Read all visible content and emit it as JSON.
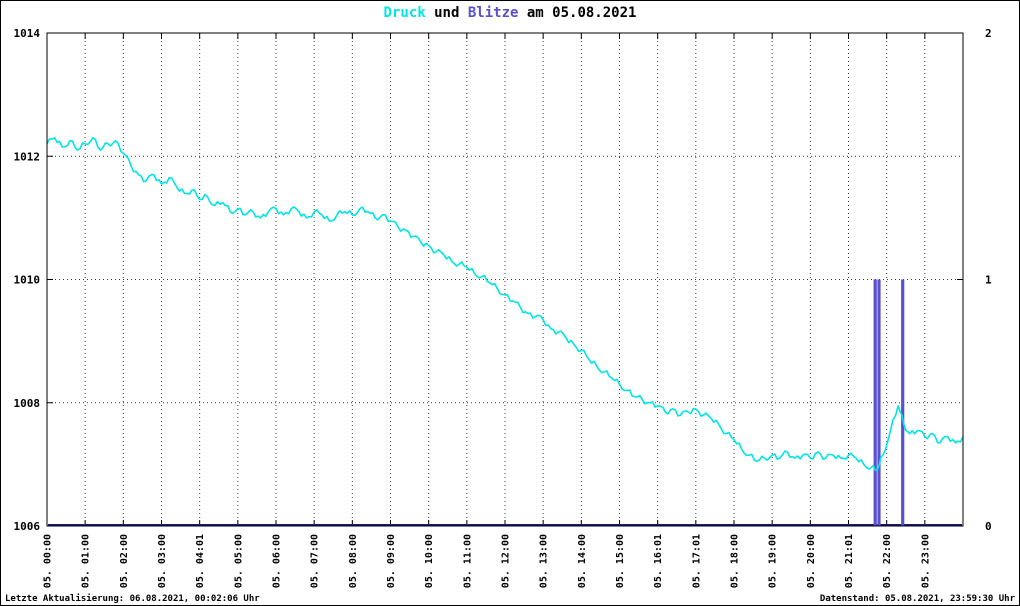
{
  "title": {
    "druck": "Druck",
    "mid": " und ",
    "blitze": "Blitze",
    "rest": " am 05.08.2021"
  },
  "footer": {
    "left": "Letzte Aktualisierung: 06.08.2021, 00:02:06 Uhr",
    "right": "Datenstand: 05.08.2021, 23:59:30 Uhr"
  },
  "colors": {
    "druck_line": "#00e5e5",
    "blitze_bar": "#5a4fcf",
    "blitze_baseline": "#191980",
    "grid": "#3c3c3c",
    "border": "#000000"
  },
  "chart_data": {
    "type": "line",
    "title": "Druck und Blitze am 05.08.2021",
    "x": {
      "min": 0,
      "max": 24,
      "tick_labels": [
        "05. 00:00",
        "05. 01:00",
        "05. 02:00",
        "05. 03:00",
        "05. 04:01",
        "05. 05:00",
        "05. 06:00",
        "05. 07:00",
        "05. 08:00",
        "05. 09:00",
        "05. 10:00",
        "05. 11:00",
        "05. 12:00",
        "05. 13:00",
        "05. 14:00",
        "05. 15:00",
        "05. 16:01",
        "05. 17:01",
        "05. 18:00",
        "05. 19:00",
        "05. 20:00",
        "05. 21:01",
        "05. 22:00",
        "05. 23:00"
      ]
    },
    "y_left": {
      "min": 1006,
      "max": 1014,
      "ticks": [
        1006,
        1008,
        1010,
        1012,
        1014
      ]
    },
    "y_right": {
      "min": 0,
      "max": 2,
      "ticks": [
        0,
        1,
        2
      ]
    },
    "grid": true,
    "legend_position": "none",
    "series": [
      {
        "name": "Druck",
        "type": "line",
        "axis": "left",
        "color": "#00e5e5",
        "points": [
          [
            0,
            1012.2
          ],
          [
            0.2,
            1012.3
          ],
          [
            0.4,
            1012.15
          ],
          [
            0.6,
            1012.25
          ],
          [
            0.8,
            1012.1
          ],
          [
            1,
            1012.2
          ],
          [
            1.2,
            1012.3
          ],
          [
            1.4,
            1012.1
          ],
          [
            1.6,
            1012.2
          ],
          [
            1.8,
            1012.25
          ],
          [
            2,
            1012.05
          ],
          [
            2.2,
            1011.85
          ],
          [
            2.4,
            1011.7
          ],
          [
            2.6,
            1011.6
          ],
          [
            2.8,
            1011.7
          ],
          [
            3,
            1011.55
          ],
          [
            3.2,
            1011.65
          ],
          [
            3.4,
            1011.5
          ],
          [
            3.6,
            1011.4
          ],
          [
            3.8,
            1011.45
          ],
          [
            4,
            1011.3
          ],
          [
            4.2,
            1011.35
          ],
          [
            4.4,
            1011.2
          ],
          [
            4.6,
            1011.25
          ],
          [
            4.8,
            1011.1
          ],
          [
            5,
            1011.15
          ],
          [
            5.2,
            1011.05
          ],
          [
            5.4,
            1011.1
          ],
          [
            5.6,
            1011
          ],
          [
            5.8,
            1011.1
          ],
          [
            6,
            1011.15
          ],
          [
            6.2,
            1011.05
          ],
          [
            6.4,
            1011.15
          ],
          [
            6.6,
            1011.1
          ],
          [
            6.8,
            1011
          ],
          [
            7,
            1011.1
          ],
          [
            7.2,
            1011.05
          ],
          [
            7.4,
            1010.95
          ],
          [
            7.6,
            1011.05
          ],
          [
            7.8,
            1011.1
          ],
          [
            8,
            1011.05
          ],
          [
            8.2,
            1011.15
          ],
          [
            8.4,
            1011.1
          ],
          [
            8.6,
            1011
          ],
          [
            8.8,
            1011.05
          ],
          [
            9,
            1010.95
          ],
          [
            9.2,
            1010.85
          ],
          [
            9.4,
            1010.8
          ],
          [
            9.6,
            1010.7
          ],
          [
            9.8,
            1010.6
          ],
          [
            10,
            1010.55
          ],
          [
            10.2,
            1010.45
          ],
          [
            10.4,
            1010.4
          ],
          [
            10.6,
            1010.3
          ],
          [
            10.8,
            1010.25
          ],
          [
            11,
            1010.2
          ],
          [
            11.2,
            1010.1
          ],
          [
            11.4,
            1010.05
          ],
          [
            11.6,
            1009.95
          ],
          [
            11.8,
            1009.85
          ],
          [
            12,
            1009.75
          ],
          [
            12.2,
            1009.65
          ],
          [
            12.4,
            1009.55
          ],
          [
            12.6,
            1009.45
          ],
          [
            12.8,
            1009.4
          ],
          [
            13,
            1009.35
          ],
          [
            13.2,
            1009.2
          ],
          [
            13.4,
            1009.15
          ],
          [
            13.6,
            1009.05
          ],
          [
            13.8,
            1008.95
          ],
          [
            14,
            1008.85
          ],
          [
            14.2,
            1008.7
          ],
          [
            14.4,
            1008.6
          ],
          [
            14.6,
            1008.5
          ],
          [
            14.8,
            1008.4
          ],
          [
            15,
            1008.3
          ],
          [
            15.2,
            1008.2
          ],
          [
            15.4,
            1008.1
          ],
          [
            15.6,
            1008.05
          ],
          [
            15.8,
            1008
          ],
          [
            16,
            1007.95
          ],
          [
            16.2,
            1007.85
          ],
          [
            16.4,
            1007.9
          ],
          [
            16.6,
            1007.8
          ],
          [
            16.8,
            1007.85
          ],
          [
            17,
            1007.9
          ],
          [
            17.2,
            1007.8
          ],
          [
            17.4,
            1007.75
          ],
          [
            17.6,
            1007.65
          ],
          [
            17.8,
            1007.5
          ],
          [
            18,
            1007.4
          ],
          [
            18.2,
            1007.25
          ],
          [
            18.4,
            1007.15
          ],
          [
            18.6,
            1007.05
          ],
          [
            18.8,
            1007.1
          ],
          [
            19,
            1007.15
          ],
          [
            19.2,
            1007.1
          ],
          [
            19.4,
            1007.2
          ],
          [
            19.6,
            1007.1
          ],
          [
            19.8,
            1007.15
          ],
          [
            20,
            1007.1
          ],
          [
            20.2,
            1007.2
          ],
          [
            20.4,
            1007.1
          ],
          [
            20.6,
            1007.15
          ],
          [
            20.8,
            1007.1
          ],
          [
            21,
            1007.15
          ],
          [
            21.2,
            1007.1
          ],
          [
            21.4,
            1007
          ],
          [
            21.6,
            1006.95
          ],
          [
            21.75,
            1006.9
          ],
          [
            21.9,
            1007.15
          ],
          [
            22.1,
            1007.55
          ],
          [
            22.3,
            1007.95
          ],
          [
            22.45,
            1007.65
          ],
          [
            22.6,
            1007.5
          ],
          [
            22.8,
            1007.55
          ],
          [
            23,
            1007.45
          ],
          [
            23.2,
            1007.5
          ],
          [
            23.4,
            1007.35
          ],
          [
            23.6,
            1007.45
          ],
          [
            23.8,
            1007.35
          ],
          [
            24,
            1007.45
          ]
        ]
      },
      {
        "name": "Blitze",
        "type": "bar",
        "axis": "right",
        "color": "#5a4fcf",
        "baseline_color": "#191980",
        "events": [
          [
            21.7,
            1
          ],
          [
            21.8,
            1
          ],
          [
            22.42,
            1
          ]
        ]
      }
    ]
  }
}
